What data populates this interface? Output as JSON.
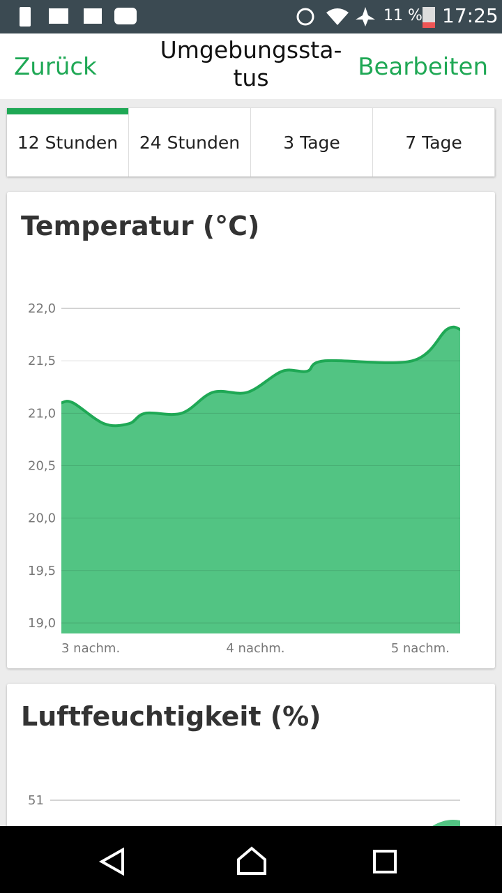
{
  "status_bar": {
    "battery": "11 %",
    "time": "17:25"
  },
  "nav": {
    "back": "Zurück",
    "title_lines": [
      "Umgebungssta-",
      "tus"
    ],
    "edit": "Bearbeiten"
  },
  "tabs": {
    "items": [
      "12 Stunden",
      "24 Stunden",
      "3 Tage",
      "7 Tage"
    ],
    "selected": 0
  },
  "chart_data": [
    {
      "type": "area",
      "title": "Temperatur (°C)",
      "color": "#52c483",
      "line_color": "#1fa855",
      "grid": true,
      "x": [
        15.0,
        15.07,
        15.26,
        15.41,
        15.51,
        15.73,
        15.92,
        16.13,
        16.34,
        16.49,
        16.6,
        17.13,
        17.34,
        17.42
      ],
      "values": [
        21.1,
        21.1,
        20.9,
        20.9,
        21.0,
        21.0,
        21.2,
        21.2,
        21.4,
        21.4,
        21.5,
        21.5,
        21.8,
        21.8
      ],
      "xlim": [
        15,
        17.42
      ],
      "xticks": [
        {
          "value": 15,
          "label": "3 nachm."
        },
        {
          "value": 16,
          "label": "4 nachm."
        },
        {
          "value": 17,
          "label": "5 nachm."
        }
      ],
      "ylim": [
        18.9,
        22.0
      ],
      "yticks": [
        {
          "value": 19.0,
          "label": "19,0"
        },
        {
          "value": 19.5,
          "label": "19,5"
        },
        {
          "value": 20.0,
          "label": "20,0"
        },
        {
          "value": 20.5,
          "label": "20,5"
        },
        {
          "value": 21.0,
          "label": "21,0"
        },
        {
          "value": 21.5,
          "label": "21,5"
        },
        {
          "value": 22.0,
          "label": "22,0"
        }
      ]
    },
    {
      "type": "area",
      "title": "Luftfeuchtigkeit (%)",
      "color": "#52c483",
      "grid": true,
      "yticks": [
        51
      ]
    }
  ]
}
